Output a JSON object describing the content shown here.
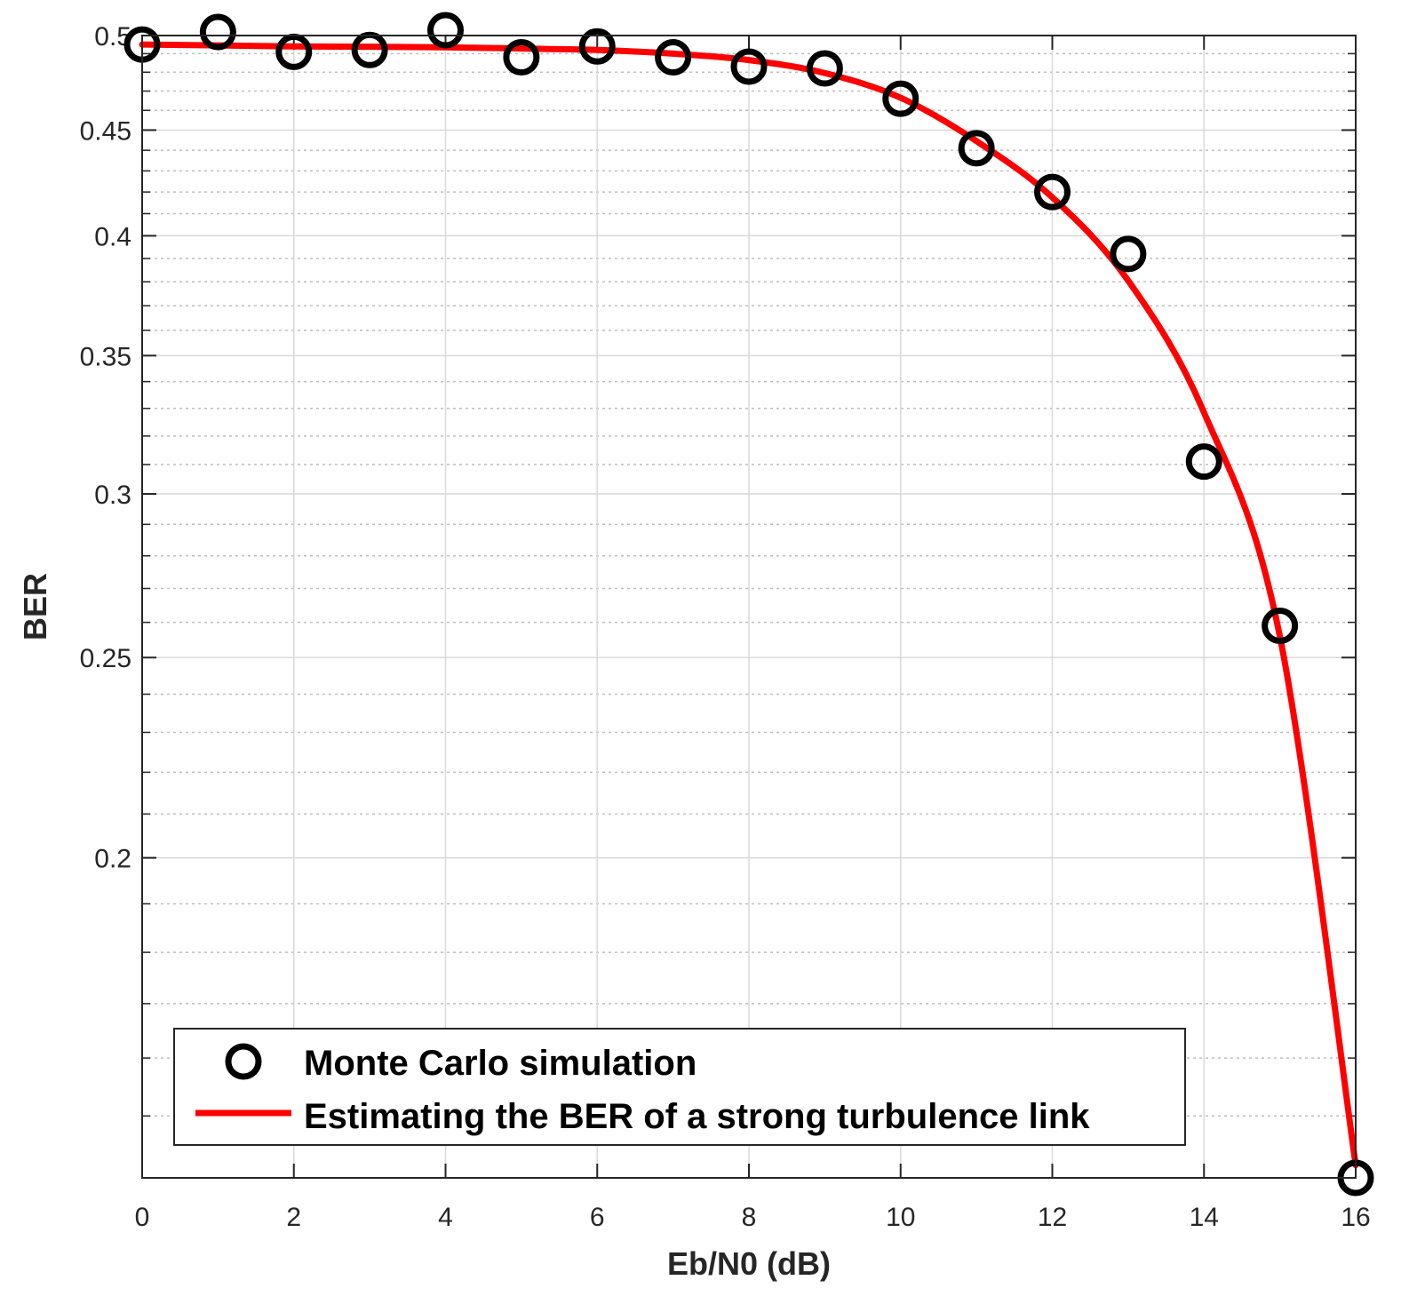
{
  "chart_data": {
    "type": "line",
    "title": "",
    "xlabel": "Eb/N0 (dB)",
    "ylabel": "BER",
    "xlim": [
      0,
      16
    ],
    "ylim": [
      0.14,
      0.5
    ],
    "yscale": "log",
    "grid": true,
    "legend_position": "bottom-left",
    "xticks": [
      0,
      2,
      4,
      6,
      8,
      10,
      12,
      14,
      16
    ],
    "xtick_labels": [
      "0",
      "2",
      "4",
      "6",
      "8",
      "10",
      "12",
      "14",
      "16"
    ],
    "yticks": [
      0.2,
      0.25,
      0.3,
      0.35,
      0.4,
      0.45,
      0.5
    ],
    "ytick_labels": [
      "0.2",
      "0.25",
      "0.3",
      "0.35",
      "0.4",
      "0.45",
      "0.5"
    ],
    "series": [
      {
        "name": "Monte Carlo simulation",
        "style": "markers",
        "marker": "circle",
        "color": "#000000",
        "x": [
          0,
          1,
          2,
          3,
          4,
          5,
          6,
          7,
          8,
          9,
          10,
          11,
          12,
          13,
          14,
          15,
          16
        ],
        "values": [
          0.495,
          0.502,
          0.491,
          0.492,
          0.503,
          0.488,
          0.494,
          0.488,
          0.483,
          0.482,
          0.466,
          0.441,
          0.42,
          0.392,
          0.311,
          0.259,
          0.14
        ]
      },
      {
        "name": "Estimating the BER of a strong turbulence link",
        "style": "line",
        "color": "#ff0000",
        "x": [
          0,
          1,
          2,
          3,
          4,
          5,
          6,
          7,
          8,
          9,
          10,
          11,
          12,
          13,
          14,
          15,
          16
        ],
        "values": [
          0.495,
          0.4945,
          0.494,
          0.4938,
          0.4935,
          0.4928,
          0.492,
          0.49,
          0.4865,
          0.4795,
          0.4665,
          0.4445,
          0.4175,
          0.3805,
          0.3285,
          0.256,
          0.142
        ]
      }
    ]
  },
  "legend": {
    "items": [
      {
        "label": "Monte Carlo simulation"
      },
      {
        "label": "Estimating the BER of a strong turbulence link"
      }
    ]
  }
}
